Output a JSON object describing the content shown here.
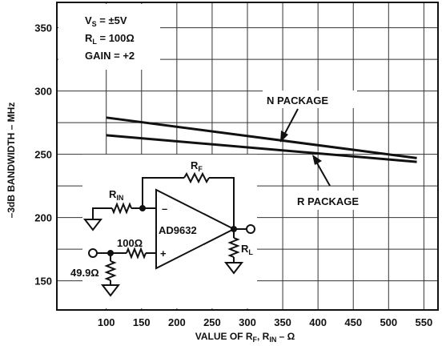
{
  "chart_data": {
    "type": "line",
    "xlabel": {
      "main": "VALUE OF R",
      "sub1": "F",
      "mid": ", R",
      "sub2": "IN",
      "tail": " – Ω"
    },
    "ylabel": "–3dB BANDWIDTH – MHz",
    "xlim": [
      30,
      570
    ],
    "ylim": [
      127,
      370
    ],
    "x_ticks": [
      100,
      150,
      200,
      250,
      300,
      350,
      400,
      450,
      500,
      550
    ],
    "y_ticks": [
      150,
      200,
      250,
      300,
      350
    ],
    "grid": true,
    "series": [
      {
        "name": "N PACKAGE",
        "x": [
          100,
          540
        ],
        "y": [
          279,
          247
        ]
      },
      {
        "name": "R PACKAGE",
        "x": [
          100,
          540
        ],
        "y": [
          265,
          244
        ]
      }
    ],
    "conditions": [
      {
        "main": "V",
        "sub": "S",
        "tail": " = ±5V"
      },
      {
        "main": "R",
        "sub": "L",
        "tail": " = 100Ω"
      },
      {
        "main": "GAIN = +2",
        "sub": "",
        "tail": ""
      }
    ],
    "circuit": {
      "amp": "AD9632",
      "rf": {
        "main": "R",
        "sub": "F"
      },
      "rin": {
        "main": "R",
        "sub": "IN"
      },
      "rl": {
        "main": "R",
        "sub": "L"
      },
      "r100": "100Ω",
      "r49": "49.9Ω",
      "minus": "–",
      "plus": "+"
    }
  }
}
